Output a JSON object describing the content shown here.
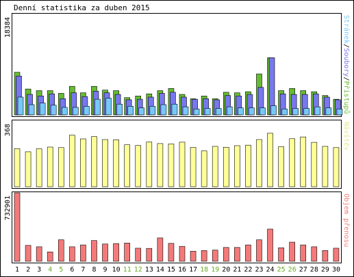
{
  "chart_data": {
    "title": "Denní statistika za duben 2015",
    "categories": [
      "1",
      "2",
      "3",
      "4",
      "5",
      "6",
      "7",
      "8",
      "9",
      "10",
      "11",
      "12",
      "13",
      "14",
      "15",
      "16",
      "17",
      "18",
      "19",
      "20",
      "21",
      "22",
      "23",
      "24",
      "25",
      "26",
      "27",
      "28",
      "29",
      "30"
    ],
    "weekend_days": [
      "4",
      "5",
      "11",
      "12",
      "18",
      "19",
      "25",
      "26"
    ],
    "colors": {
      "hits": "#66bb33",
      "files": "#7777ee",
      "pages": "#77c8f8",
      "visits": "#ffff99",
      "volume": "#f47a7a",
      "axis_text": "#000000",
      "weekend_text": "#66aa22"
    },
    "panels": [
      {
        "type": "bar",
        "ymax_label": "18384",
        "ylim": [
          0,
          18384
        ],
        "legend_parts": [
          {
            "text": "Stránek",
            "color": "#77c8f8"
          },
          {
            "text": "/",
            "color": "#000000"
          },
          {
            "text": "Soubory",
            "color": "#7777ee"
          },
          {
            "text": "/",
            "color": "#000000"
          },
          {
            "text": "Přístupů",
            "color": "#66bb33"
          }
        ],
        "series": [
          {
            "name": "Přístupů",
            "color": "#66bb33",
            "values": [
              7900,
              4800,
              4500,
              4500,
              4000,
              5300,
              4100,
              5300,
              4600,
              4500,
              3200,
              3500,
              3900,
              4500,
              4900,
              3800,
              3000,
              3500,
              3000,
              4200,
              4100,
              4300,
              7600,
              10600,
              4500,
              4900,
              4500,
              4300,
              3600,
              2900
            ]
          },
          {
            "name": "Soubory",
            "color": "#7777ee",
            "values": [
              7200,
              3800,
              3500,
              3900,
              3000,
              4100,
              3400,
              4400,
              4100,
              3800,
              2800,
              2900,
              3300,
              4000,
              4200,
              3300,
              2900,
              3000,
              2800,
              3600,
              3500,
              3800,
              5100,
              10600,
              3900,
              3800,
              3800,
              3900,
              3300,
              2800
            ]
          },
          {
            "name": "Stránek",
            "color": "#77c8f8",
            "values": [
              3300,
              1900,
              2200,
              1800,
              1400,
              1400,
              1600,
              2900,
              3100,
              2000,
              1600,
              1300,
              1600,
              1900,
              2000,
              1500,
              1100,
              1200,
              1200,
              1500,
              1300,
              1300,
              1300,
              1700,
              1100,
              1200,
              1200,
              1500,
              1300,
              1100
            ]
          }
        ]
      },
      {
        "type": "bar",
        "ymax_label": "368",
        "ylim": [
          0,
          368
        ],
        "legend_parts": [
          {
            "text": "Návštěv",
            "color": "#e8e890"
          }
        ],
        "series": [
          {
            "name": "Návštěv",
            "color": "#ffff99",
            "values": [
              218,
              200,
              217,
              227,
              224,
              295,
              274,
              287,
              270,
              269,
              240,
              236,
              256,
              247,
              245,
              255,
              225,
              205,
              231,
              226,
              235,
              238,
              270,
              306,
              229,
              275,
              285,
              254,
              231,
              224
            ]
          }
        ]
      },
      {
        "type": "bar",
        "ymax_label": "732901",
        "ylim": [
          0,
          732901
        ],
        "legend_parts": [
          {
            "text": "Objem přenosu",
            "color": "#f47a7a"
          }
        ],
        "series": [
          {
            "name": "Objem přenosu",
            "color": "#f47a7a",
            "values": [
              732901,
              170000,
              155000,
              100000,
              230000,
              155000,
              175000,
              222000,
              185000,
              190000,
              195000,
              140000,
              138000,
              250000,
              192000,
              160000,
              108000,
              115000,
              120000,
              148000,
              148000,
              175000,
              230000,
              345000,
              145000,
              205000,
              175000,
              155000,
              115000,
              140000
            ]
          }
        ]
      }
    ]
  }
}
